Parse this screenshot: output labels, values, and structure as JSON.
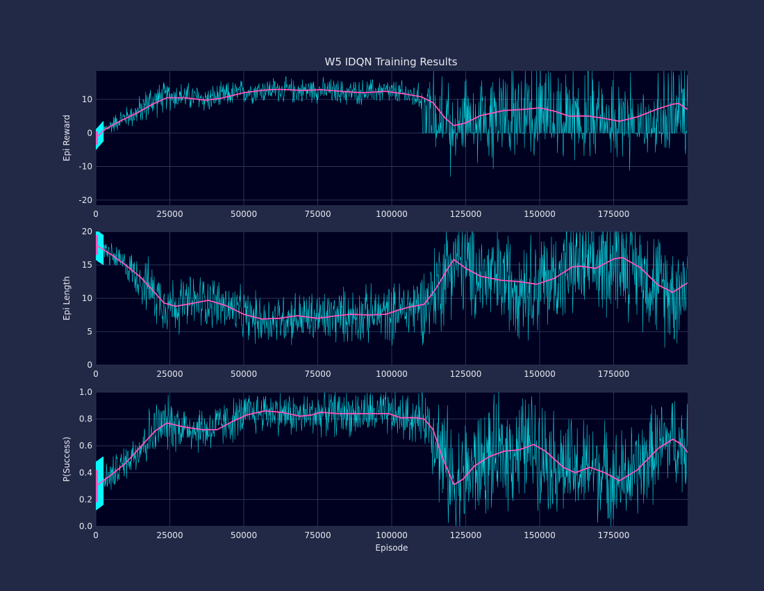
{
  "figure": {
    "title": "W5 IDQN Training Results",
    "background": "#212946",
    "plot_background": "#000020",
    "grid_color": "#2a3459",
    "text_color": "#e8e8f0",
    "raw_color": "#08f7fe",
    "smooth_color": "#fe53bb"
  },
  "chart_data": [
    {
      "type": "line",
      "xlabel": "",
      "ylabel": "Epi Reward",
      "xlim": [
        0,
        200000
      ],
      "ylim": [
        -21.5,
        18.5
      ],
      "xticks": [
        0,
        25000,
        50000,
        75000,
        100000,
        125000,
        150000,
        175000
      ],
      "yticks": [
        -20,
        -10,
        0,
        10
      ],
      "grid": true,
      "raw_trend": [
        [
          0,
          -2
        ],
        [
          3000,
          1
        ],
        [
          8000,
          4
        ],
        [
          14000,
          6
        ],
        [
          18000,
          9
        ],
        [
          24000,
          11
        ],
        [
          30000,
          11
        ],
        [
          38000,
          10
        ],
        [
          45000,
          11.5
        ],
        [
          52000,
          12.5
        ],
        [
          60000,
          13
        ],
        [
          67000,
          12.5
        ],
        [
          75000,
          12.8
        ],
        [
          85000,
          12
        ],
        [
          97000,
          12.5
        ],
        [
          105000,
          11.5
        ],
        [
          112000,
          10
        ],
        [
          117000,
          6
        ],
        [
          121000,
          2
        ],
        [
          125000,
          3
        ],
        [
          132000,
          5.5
        ],
        [
          140000,
          7
        ],
        [
          150000,
          7.5
        ],
        [
          158000,
          5
        ],
        [
          168000,
          5
        ],
        [
          177000,
          3.5
        ],
        [
          185000,
          5
        ],
        [
          194000,
          8.5
        ],
        [
          200000,
          7
        ]
      ],
      "raw_spread": [
        [
          0,
          2
        ],
        [
          10000,
          3
        ],
        [
          18000,
          5
        ],
        [
          25000,
          4
        ],
        [
          50000,
          3.5
        ],
        [
          100000,
          3.5
        ],
        [
          112000,
          4
        ],
        [
          116000,
          14
        ],
        [
          200000,
          13
        ]
      ],
      "smooth": [
        [
          0,
          -1.5
        ],
        [
          3000,
          1
        ],
        [
          8000,
          3.5
        ],
        [
          14000,
          6
        ],
        [
          19000,
          8.5
        ],
        [
          24000,
          10.5
        ],
        [
          30000,
          10.5
        ],
        [
          37000,
          9.8
        ],
        [
          42000,
          10.3
        ],
        [
          50000,
          12
        ],
        [
          57000,
          12.8
        ],
        [
          62000,
          13
        ],
        [
          70000,
          12.7
        ],
        [
          76000,
          12.9
        ],
        [
          82000,
          12.5
        ],
        [
          90000,
          12
        ],
        [
          98000,
          12.4
        ],
        [
          104000,
          11.7
        ],
        [
          110000,
          10.8
        ],
        [
          114000,
          9
        ],
        [
          118000,
          4.5
        ],
        [
          121000,
          2.2
        ],
        [
          125000,
          3
        ],
        [
          130000,
          5.2
        ],
        [
          138000,
          6.7
        ],
        [
          144000,
          7
        ],
        [
          150000,
          7.5
        ],
        [
          155000,
          6.5
        ],
        [
          160000,
          5
        ],
        [
          166000,
          5.1
        ],
        [
          171000,
          4.5
        ],
        [
          177000,
          3.5
        ],
        [
          183000,
          4.8
        ],
        [
          190000,
          7.2
        ],
        [
          195000,
          8.6
        ],
        [
          197000,
          8.8
        ],
        [
          200000,
          7
        ]
      ],
      "series": [
        {
          "name": "",
          "style": "raw"
        },
        {
          "name": "",
          "style": "smoothed"
        }
      ]
    },
    {
      "type": "line",
      "xlabel": "",
      "ylabel": "Epi Length",
      "xlim": [
        0,
        200000
      ],
      "ylim": [
        0,
        20
      ],
      "xticks": [
        0,
        25000,
        50000,
        75000,
        100000,
        125000,
        150000,
        175000
      ],
      "yticks": [
        0,
        5,
        10,
        15,
        20
      ],
      "grid": true,
      "raw_trend": [
        [
          0,
          18
        ],
        [
          5000,
          16.5
        ],
        [
          10000,
          15
        ],
        [
          15000,
          13
        ],
        [
          20000,
          10.5
        ],
        [
          25000,
          9
        ],
        [
          30000,
          9.2
        ],
        [
          38000,
          9.8
        ],
        [
          45000,
          8.5
        ],
        [
          52000,
          7.2
        ],
        [
          58000,
          6.8
        ],
        [
          65000,
          7.2
        ],
        [
          75000,
          7
        ],
        [
          85000,
          7.5
        ],
        [
          95000,
          7.6
        ],
        [
          100000,
          7.8
        ],
        [
          106000,
          8.5
        ],
        [
          112000,
          9.5
        ],
        [
          117000,
          13
        ],
        [
          121000,
          16
        ],
        [
          125000,
          14.5
        ],
        [
          132000,
          13
        ],
        [
          140000,
          12.5
        ],
        [
          148000,
          12.2
        ],
        [
          155000,
          13
        ],
        [
          162000,
          15
        ],
        [
          168000,
          14.5
        ],
        [
          176000,
          16.2
        ],
        [
          182000,
          15
        ],
        [
          190000,
          12
        ],
        [
          195000,
          11
        ],
        [
          200000,
          12.3
        ]
      ],
      "raw_spread": [
        [
          0,
          1.5
        ],
        [
          10000,
          2
        ],
        [
          18000,
          4
        ],
        [
          25000,
          4
        ],
        [
          50000,
          3.5
        ],
        [
          100000,
          4
        ],
        [
          110000,
          5
        ],
        [
          116000,
          7
        ],
        [
          200000,
          7.5
        ]
      ],
      "smooth": [
        [
          0,
          18
        ],
        [
          5000,
          16.6
        ],
        [
          10000,
          15
        ],
        [
          15000,
          13.2
        ],
        [
          19000,
          11.3
        ],
        [
          23000,
          9.3
        ],
        [
          27000,
          8.8
        ],
        [
          32000,
          9.2
        ],
        [
          38000,
          9.7
        ],
        [
          44000,
          8.9
        ],
        [
          50000,
          7.6
        ],
        [
          56000,
          6.9
        ],
        [
          62000,
          7
        ],
        [
          68000,
          7.4
        ],
        [
          75000,
          7
        ],
        [
          80000,
          7.3
        ],
        [
          86000,
          7.6
        ],
        [
          92000,
          7.5
        ],
        [
          98000,
          7.6
        ],
        [
          102000,
          8.2
        ],
        [
          106000,
          8.7
        ],
        [
          111000,
          9.1
        ],
        [
          115000,
          11.5
        ],
        [
          119000,
          14.5
        ],
        [
          121000,
          15.8
        ],
        [
          125000,
          14.5
        ],
        [
          130000,
          13.3
        ],
        [
          137000,
          12.7
        ],
        [
          143000,
          12.5
        ],
        [
          149000,
          12.1
        ],
        [
          155000,
          13
        ],
        [
          161000,
          14.7
        ],
        [
          164000,
          14.8
        ],
        [
          169000,
          14.5
        ],
        [
          175000,
          15.9
        ],
        [
          178000,
          16.1
        ],
        [
          184000,
          14.6
        ],
        [
          190000,
          12
        ],
        [
          195000,
          10.9
        ],
        [
          200000,
          12.3
        ]
      ],
      "series": [
        {
          "name": "",
          "style": "raw"
        },
        {
          "name": "",
          "style": "smoothed"
        }
      ]
    },
    {
      "type": "line",
      "xlabel": "Episode",
      "ylabel": "P(Success)",
      "xlim": [
        0,
        200000
      ],
      "ylim": [
        0,
        1
      ],
      "xticks": [
        0,
        25000,
        50000,
        75000,
        100000,
        125000,
        150000,
        175000
      ],
      "yticks": [
        0.0,
        0.2,
        0.4,
        0.6,
        0.8,
        1.0
      ],
      "grid": true,
      "raw_trend": [
        [
          0,
          0.3
        ],
        [
          5000,
          0.38
        ],
        [
          10000,
          0.48
        ],
        [
          15000,
          0.6
        ],
        [
          20000,
          0.72
        ],
        [
          24000,
          0.77
        ],
        [
          30000,
          0.74
        ],
        [
          38000,
          0.72
        ],
        [
          45000,
          0.78
        ],
        [
          52000,
          0.84
        ],
        [
          58000,
          0.86
        ],
        [
          64000,
          0.84
        ],
        [
          70000,
          0.82
        ],
        [
          76000,
          0.85
        ],
        [
          85000,
          0.84
        ],
        [
          95000,
          0.84
        ],
        [
          100000,
          0.83
        ],
        [
          106000,
          0.8
        ],
        [
          112000,
          0.8
        ],
        [
          116000,
          0.6
        ],
        [
          121000,
          0.32
        ],
        [
          126000,
          0.4
        ],
        [
          132000,
          0.5
        ],
        [
          140000,
          0.56
        ],
        [
          148000,
          0.61
        ],
        [
          155000,
          0.48
        ],
        [
          162000,
          0.4
        ],
        [
          168000,
          0.44
        ],
        [
          176000,
          0.34
        ],
        [
          182000,
          0.4
        ],
        [
          190000,
          0.58
        ],
        [
          195000,
          0.65
        ],
        [
          200000,
          0.55
        ]
      ],
      "raw_spread": [
        [
          0,
          0.12
        ],
        [
          10000,
          0.12
        ],
        [
          18000,
          0.2
        ],
        [
          25000,
          0.18
        ],
        [
          50000,
          0.15
        ],
        [
          100000,
          0.16
        ],
        [
          112000,
          0.18
        ],
        [
          116000,
          0.4
        ],
        [
          200000,
          0.32
        ]
      ],
      "smooth": [
        [
          0,
          0.3
        ],
        [
          5000,
          0.38
        ],
        [
          10000,
          0.47
        ],
        [
          15000,
          0.59
        ],
        [
          20000,
          0.71
        ],
        [
          24000,
          0.77
        ],
        [
          30000,
          0.74
        ],
        [
          36000,
          0.72
        ],
        [
          41000,
          0.72
        ],
        [
          46000,
          0.78
        ],
        [
          51000,
          0.83
        ],
        [
          57000,
          0.86
        ],
        [
          63000,
          0.85
        ],
        [
          69000,
          0.82
        ],
        [
          73000,
          0.83
        ],
        [
          76000,
          0.85
        ],
        [
          82000,
          0.84
        ],
        [
          88000,
          0.84
        ],
        [
          94000,
          0.84
        ],
        [
          99000,
          0.84
        ],
        [
          103000,
          0.81
        ],
        [
          108000,
          0.81
        ],
        [
          111000,
          0.8
        ],
        [
          114000,
          0.72
        ],
        [
          117000,
          0.52
        ],
        [
          121000,
          0.31
        ],
        [
          124000,
          0.35
        ],
        [
          128000,
          0.45
        ],
        [
          133000,
          0.52
        ],
        [
          138000,
          0.56
        ],
        [
          143000,
          0.57
        ],
        [
          148000,
          0.61
        ],
        [
          152000,
          0.56
        ],
        [
          158000,
          0.44
        ],
        [
          162000,
          0.4
        ],
        [
          167000,
          0.44
        ],
        [
          172000,
          0.4
        ],
        [
          177000,
          0.34
        ],
        [
          183000,
          0.42
        ],
        [
          190000,
          0.58
        ],
        [
          195000,
          0.65
        ],
        [
          198000,
          0.61
        ],
        [
          200000,
          0.55
        ]
      ],
      "series": [
        {
          "name": "",
          "style": "raw"
        },
        {
          "name": "",
          "style": "smoothed"
        }
      ]
    }
  ]
}
